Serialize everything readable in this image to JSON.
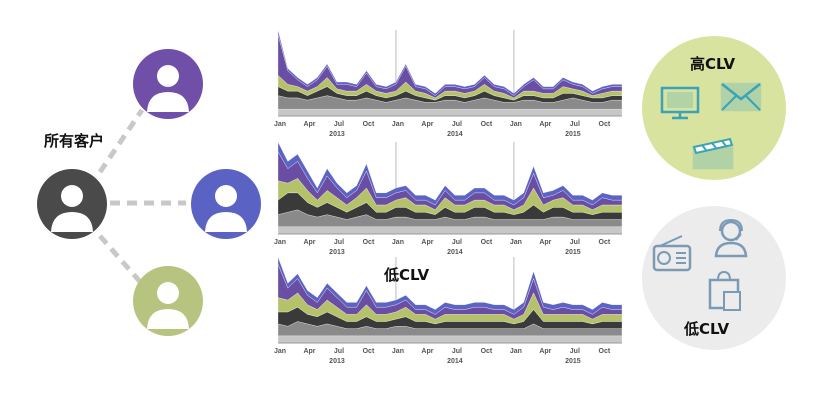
{
  "labels": {
    "all_customers": "所有客户",
    "high_clv": "高CLV",
    "low_clv_mid": "低CLV",
    "low_clv": "低CLV"
  },
  "avatar_colors": {
    "root": "#4a4a4a",
    "purple": "#6f4fa7",
    "blue": "#5a62c4",
    "green": "#b7c47f"
  },
  "circle_colors": {
    "high": "#d9e3a0",
    "low": "#ececec"
  },
  "icons": {
    "high": [
      "monitor-icon",
      "envelope-icon",
      "clapperboard-icon"
    ],
    "low": [
      "radio-icon",
      "headset-person-icon",
      "shopping-bag-icon"
    ]
  },
  "chart_data": [
    {
      "type": "area",
      "name": "top-chart",
      "x_ticks": [
        "Jan",
        "Apr",
        "Jul",
        "Oct",
        "Jan",
        "Apr",
        "Jul",
        "Oct",
        "Jan",
        "Apr",
        "Jul",
        "Oct"
      ],
      "years": [
        "2013",
        "2014",
        "2015"
      ],
      "series_colors": [
        "#c7c7c7",
        "#8a8a8a",
        "#3a3a3a",
        "#b5c26a",
        "#6a4ea3",
        "#5b63c4"
      ],
      "values": [
        [
          3,
          3,
          3,
          3,
          3,
          3,
          3,
          3,
          3,
          3,
          3,
          3,
          3,
          3,
          3,
          3,
          3,
          3,
          3,
          3,
          3,
          3,
          3,
          3,
          3,
          3,
          3,
          3,
          3,
          3,
          3,
          3,
          3,
          3,
          3,
          3
        ],
        [
          6,
          5,
          5,
          4,
          5,
          6,
          5,
          4,
          4,
          5,
          4,
          3,
          4,
          5,
          4,
          3,
          3,
          4,
          4,
          3,
          4,
          5,
          4,
          3,
          3,
          4,
          4,
          3,
          3,
          4,
          5,
          4,
          3,
          3,
          4,
          4
        ],
        [
          4,
          3,
          3,
          2,
          3,
          4,
          2,
          2,
          2,
          3,
          2,
          2,
          2,
          3,
          2,
          2,
          1,
          2,
          2,
          2,
          2,
          3,
          2,
          2,
          1,
          2,
          2,
          2,
          2,
          3,
          2,
          2,
          2,
          2,
          2,
          2
        ],
        [
          5,
          3,
          2,
          2,
          2,
          4,
          2,
          2,
          2,
          3,
          2,
          2,
          2,
          4,
          2,
          2,
          1,
          2,
          2,
          2,
          2,
          3,
          2,
          2,
          1,
          2,
          2,
          2,
          2,
          3,
          2,
          2,
          1,
          2,
          2,
          2
        ],
        [
          18,
          6,
          3,
          2,
          3,
          5,
          2,
          3,
          2,
          5,
          2,
          2,
          3,
          7,
          2,
          2,
          1,
          2,
          2,
          2,
          2,
          3,
          2,
          2,
          1,
          2,
          5,
          2,
          2,
          3,
          2,
          2,
          1,
          2,
          2,
          2
        ],
        [
          2,
          1,
          1,
          1,
          1,
          1,
          1,
          1,
          1,
          1,
          1,
          1,
          1,
          1,
          1,
          1,
          1,
          1,
          1,
          1,
          1,
          1,
          1,
          1,
          1,
          1,
          1,
          1,
          1,
          1,
          1,
          1,
          1,
          1,
          1,
          1
        ]
      ]
    },
    {
      "type": "area",
      "name": "middle-chart",
      "x_ticks": [
        "Jan",
        "Apr",
        "Jul",
        "Oct",
        "Jan",
        "Apr",
        "Jul",
        "Oct",
        "Jan",
        "Apr",
        "Jul",
        "Oct"
      ],
      "years": [
        "2013",
        "2014",
        "2015"
      ],
      "series_colors": [
        "#c7c7c7",
        "#8a8a8a",
        "#3a3a3a",
        "#b5c26a",
        "#6a4ea3",
        "#5b63c4"
      ],
      "values": [
        [
          3,
          3,
          3,
          3,
          3,
          3,
          3,
          3,
          3,
          3,
          3,
          3,
          3,
          3,
          3,
          3,
          3,
          3,
          3,
          3,
          3,
          3,
          3,
          3,
          3,
          3,
          3,
          3,
          3,
          3,
          3,
          3,
          3,
          3,
          3,
          3
        ],
        [
          5,
          6,
          7,
          5,
          4,
          5,
          4,
          3,
          4,
          5,
          3,
          3,
          4,
          4,
          3,
          3,
          3,
          4,
          3,
          3,
          4,
          4,
          3,
          3,
          3,
          3,
          3,
          3,
          4,
          4,
          3,
          3,
          3,
          3,
          3,
          3
        ],
        [
          6,
          8,
          7,
          5,
          4,
          5,
          4,
          3,
          4,
          5,
          3,
          3,
          4,
          4,
          3,
          3,
          2,
          4,
          3,
          3,
          4,
          4,
          3,
          3,
          2,
          3,
          6,
          3,
          4,
          4,
          3,
          3,
          2,
          3,
          3,
          3
        ],
        [
          8,
          4,
          6,
          5,
          3,
          5,
          4,
          3,
          4,
          6,
          3,
          3,
          3,
          4,
          3,
          3,
          2,
          4,
          3,
          3,
          3,
          3,
          3,
          3,
          2,
          3,
          7,
          3,
          3,
          4,
          3,
          3,
          2,
          3,
          3,
          3
        ],
        [
          12,
          6,
          7,
          5,
          3,
          6,
          4,
          3,
          3,
          7,
          3,
          3,
          3,
          3,
          2,
          2,
          2,
          3,
          2,
          2,
          3,
          3,
          2,
          2,
          2,
          3,
          6,
          3,
          2,
          3,
          2,
          2,
          2,
          3,
          2,
          2
        ],
        [
          4,
          3,
          3,
          3,
          2,
          3,
          2,
          2,
          2,
          3,
          2,
          2,
          2,
          2,
          2,
          2,
          2,
          2,
          2,
          2,
          2,
          2,
          2,
          2,
          2,
          2,
          3,
          2,
          2,
          2,
          2,
          2,
          2,
          2,
          2,
          2
        ]
      ]
    },
    {
      "type": "area",
      "name": "bottom-chart",
      "x_ticks": [
        "Jan",
        "Apr",
        "Jul",
        "Oct",
        "Jan",
        "Apr",
        "Jul",
        "Oct",
        "Jan",
        "Apr",
        "Jul",
        "Oct"
      ],
      "years": [
        "2013",
        "2014",
        "2015"
      ],
      "series_colors": [
        "#c7c7c7",
        "#8a8a8a",
        "#3a3a3a",
        "#b5c26a",
        "#6a4ea3",
        "#5b63c4"
      ],
      "values": [
        [
          3,
          3,
          3,
          3,
          3,
          3,
          3,
          3,
          3,
          3,
          3,
          3,
          3,
          3,
          3,
          3,
          3,
          3,
          3,
          3,
          3,
          3,
          3,
          3,
          3,
          3,
          3,
          3,
          3,
          3,
          3,
          3,
          3,
          3,
          3,
          3
        ],
        [
          5,
          4,
          6,
          5,
          4,
          5,
          4,
          3,
          3,
          4,
          3,
          3,
          4,
          4,
          3,
          3,
          3,
          3,
          3,
          3,
          3,
          3,
          3,
          3,
          3,
          3,
          5,
          3,
          3,
          3,
          3,
          3,
          3,
          3,
          3,
          3
        ],
        [
          5,
          6,
          6,
          4,
          4,
          5,
          4,
          3,
          3,
          4,
          3,
          3,
          3,
          4,
          3,
          3,
          2,
          3,
          3,
          3,
          3,
          3,
          3,
          3,
          2,
          3,
          6,
          3,
          3,
          3,
          3,
          3,
          2,
          3,
          3,
          3
        ],
        [
          6,
          5,
          6,
          4,
          3,
          5,
          4,
          3,
          3,
          5,
          3,
          3,
          3,
          4,
          3,
          3,
          2,
          3,
          3,
          3,
          3,
          3,
          3,
          3,
          2,
          3,
          7,
          3,
          3,
          3,
          3,
          3,
          2,
          3,
          3,
          3
        ],
        [
          14,
          5,
          6,
          4,
          3,
          5,
          4,
          3,
          3,
          6,
          3,
          3,
          3,
          3,
          2,
          2,
          2,
          3,
          2,
          2,
          3,
          3,
          2,
          2,
          2,
          3,
          6,
          3,
          2,
          3,
          2,
          2,
          2,
          3,
          2,
          2
        ],
        [
          3,
          2,
          2,
          2,
          2,
          2,
          2,
          2,
          2,
          2,
          2,
          2,
          2,
          2,
          2,
          2,
          2,
          2,
          2,
          2,
          2,
          2,
          2,
          2,
          2,
          2,
          3,
          2,
          2,
          2,
          2,
          2,
          2,
          2,
          2,
          2
        ]
      ]
    }
  ]
}
